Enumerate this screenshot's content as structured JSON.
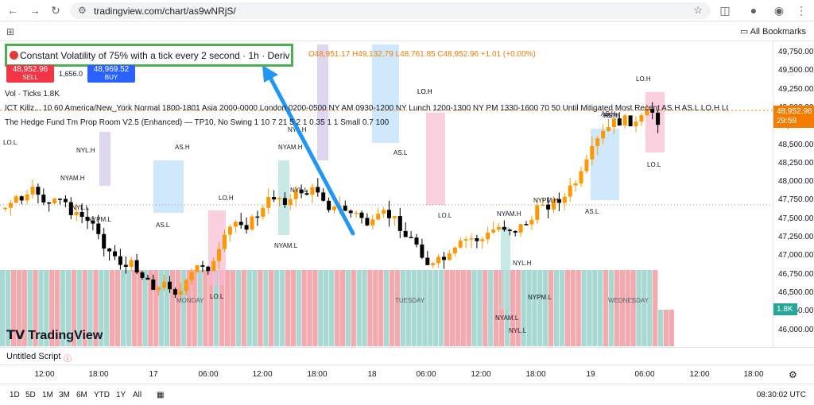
{
  "browser": {
    "url": "tradingview.com/chart/as9wNRjS/",
    "bookmarks_label": "All Bookmarks"
  },
  "symbol": {
    "title": "Constant Volatility of 75% with a tick every 2 second · 1h · Deriv",
    "ohlc": "O48,951.17  H49,132.79  L48,761.85  C48,952.96  +1.01 (+0.00%)",
    "sell_price": "48,952.96",
    "sell_label": "SELL",
    "buy_price": "48,969.52",
    "buy_label": "BUY",
    "spread": "1,656.0"
  },
  "indicators": {
    "vol": "Vol · Ticks  1.8K",
    "ict": "ICT Killz...  10 60 America/New_York Normal 1800-1801 Asia 2000-0000 London 0200-0500 NY AM 0930-1200 NY Lunch 1200-1300 NY PM 1330-1600 70 50 Until Mitigated Most Recent AS.H AS.L LO.H LO.L NYA...",
    "hedge": "The Hedge Fund Tm Prop Room V2.5 (Enhanced) — TP10, No Swing 1 10 7 21 5 2 1 0.35 1 1 Small 0.7 100"
  },
  "price_axis": {
    "labels": [
      "49,750.00",
      "49,500.00",
      "49,250.00",
      "49,000.00",
      "48,750.00",
      "48,500.00",
      "48,250.00",
      "48,000.00",
      "47,750.00",
      "47,500.00",
      "47,250.00",
      "47,000.00",
      "46,750.00",
      "46,500.00",
      "46,250.00",
      "46,000.00"
    ],
    "current_price": "48,952.96",
    "countdown": "29:58",
    "volume_tag": "1.8K"
  },
  "chart_annotations": [
    "LO.L",
    "NYL.H",
    "NYAM.H",
    "NYL.L",
    "NYPM.L",
    "AS.H",
    "AS.L",
    "LO.H",
    "NYAM.L",
    "LO.L",
    "NYAM.H",
    "NYL.L",
    "NYL.H",
    "AS.L",
    "LO.H",
    "AS.H",
    "LO.L",
    "NYAM.H",
    "NYPM.H",
    "LO.H",
    "NYL.H",
    "NYPM.L",
    "NYAM.L",
    "NYL.L",
    "AS.H",
    "AS.L",
    "LO.H",
    "AS.H",
    "LO.L"
  ],
  "day_labels": [
    "MONDAY",
    "TUESDAY",
    "WEDNESDAY"
  ],
  "watermark": "TradingView",
  "script_name": "Untitled Script",
  "time_axis": [
    "12:00",
    "18:00",
    "17",
    "06:00",
    "12:00",
    "18:00",
    "18",
    "06:00",
    "12:00",
    "18:00",
    "19",
    "06:00",
    "12:00",
    "18:00"
  ],
  "ranges": [
    "1D",
    "5D",
    "1M",
    "3M",
    "6M",
    "YTD",
    "1Y",
    "All"
  ],
  "clock": "08:30:02 UTC",
  "colors": {
    "bull": "#ff9800",
    "bear": "#000000",
    "highlight_box": "#4caf50",
    "arrow": "#2196f3",
    "sell": "#f23645",
    "buy": "#2962ff"
  }
}
